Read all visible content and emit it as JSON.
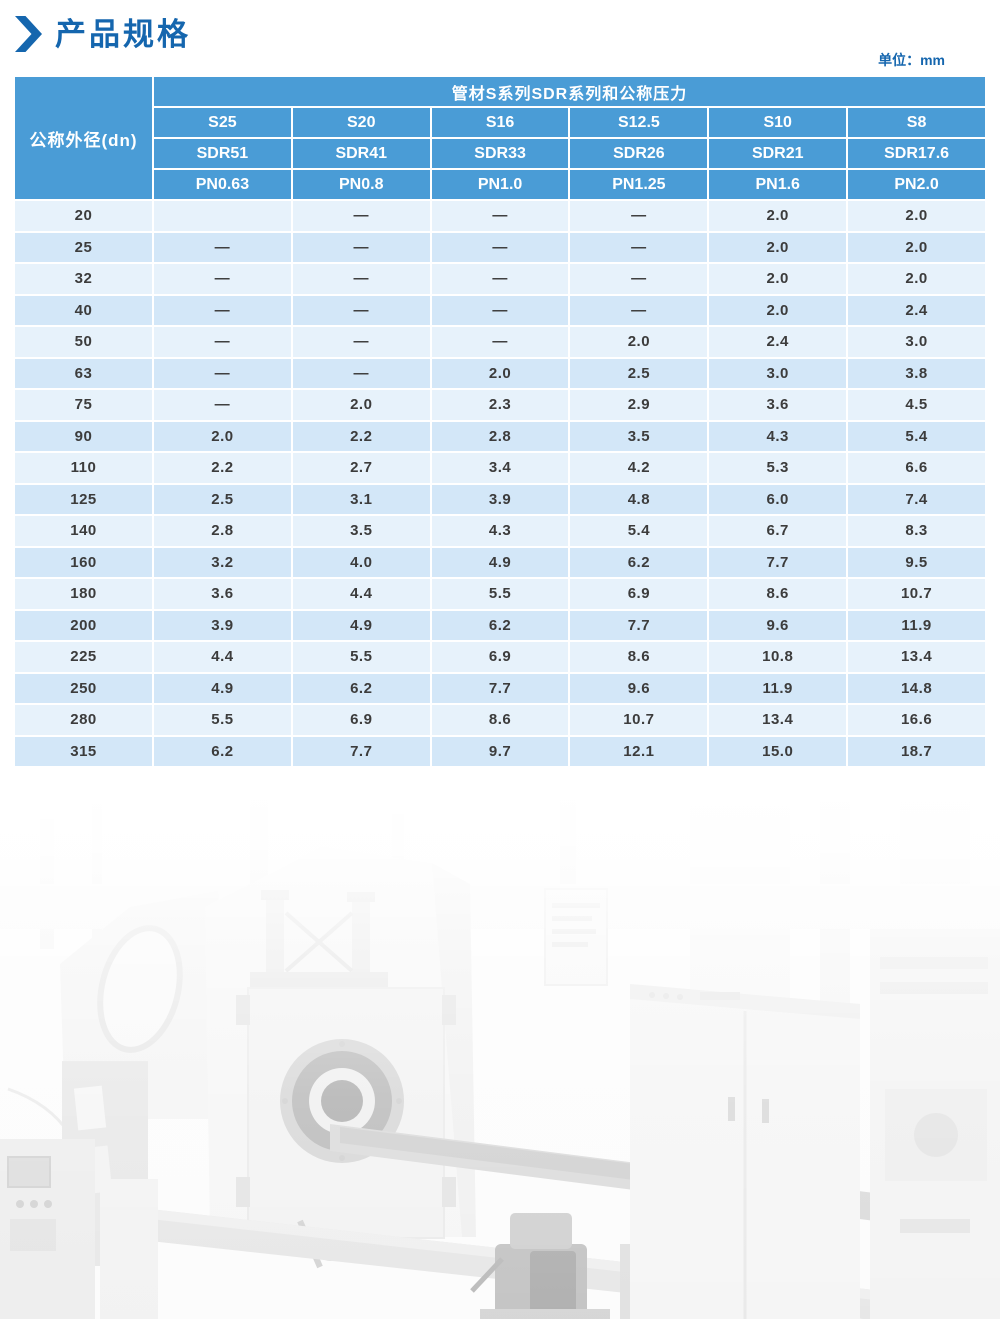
{
  "page": {
    "title": "产品规格",
    "unit_label": "单位：mm"
  },
  "colors": {
    "accent_blue": "#1566AE",
    "header_blue": "#4A9CD6",
    "row_light": "#E7F2FB",
    "row_dark": "#D3E7F8"
  },
  "table": {
    "group_header": "管材S系列SDR系列和公称压力",
    "row_header": "公称外径(dn)",
    "s_labels": [
      "S25",
      "S20",
      "S16",
      "S12.5",
      "S10",
      "S8"
    ],
    "sdr_labels": [
      "SDR51",
      "SDR41",
      "SDR33",
      "SDR26",
      "SDR21",
      "SDR17.6"
    ],
    "pn_labels": [
      "PN0.63",
      "PN0.8",
      "PN1.0",
      "PN1.25",
      "PN1.6",
      "PN2.0"
    ],
    "rows": [
      {
        "dn": "20",
        "values": [
          "",
          "—",
          "—",
          "—",
          "2.0",
          "2.0"
        ]
      },
      {
        "dn": "25",
        "values": [
          "—",
          "—",
          "—",
          "—",
          "2.0",
          "2.0"
        ]
      },
      {
        "dn": "32",
        "values": [
          "—",
          "—",
          "—",
          "—",
          "2.0",
          "2.0"
        ]
      },
      {
        "dn": "40",
        "values": [
          "—",
          "—",
          "—",
          "—",
          "2.0",
          "2.4"
        ]
      },
      {
        "dn": "50",
        "values": [
          "—",
          "—",
          "—",
          "2.0",
          "2.4",
          "3.0"
        ]
      },
      {
        "dn": "63",
        "values": [
          "—",
          "—",
          "2.0",
          "2.5",
          "3.0",
          "3.8"
        ]
      },
      {
        "dn": "75",
        "values": [
          "—",
          "2.0",
          "2.3",
          "2.9",
          "3.6",
          "4.5"
        ]
      },
      {
        "dn": "90",
        "values": [
          "2.0",
          "2.2",
          "2.8",
          "3.5",
          "4.3",
          "5.4"
        ]
      },
      {
        "dn": "110",
        "values": [
          "2.2",
          "2.7",
          "3.4",
          "4.2",
          "5.3",
          "6.6"
        ]
      },
      {
        "dn": "125",
        "values": [
          "2.5",
          "3.1",
          "3.9",
          "4.8",
          "6.0",
          "7.4"
        ]
      },
      {
        "dn": "140",
        "values": [
          "2.8",
          "3.5",
          "4.3",
          "5.4",
          "6.7",
          "8.3"
        ]
      },
      {
        "dn": "160",
        "values": [
          "3.2",
          "4.0",
          "4.9",
          "6.2",
          "7.7",
          "9.5"
        ]
      },
      {
        "dn": "180",
        "values": [
          "3.6",
          "4.4",
          "5.5",
          "6.9",
          "8.6",
          "10.7"
        ]
      },
      {
        "dn": "200",
        "values": [
          "3.9",
          "4.9",
          "6.2",
          "7.7",
          "9.6",
          "11.9"
        ]
      },
      {
        "dn": "225",
        "values": [
          "4.4",
          "5.5",
          "6.9",
          "8.6",
          "10.8",
          "13.4"
        ]
      },
      {
        "dn": "250",
        "values": [
          "4.9",
          "6.2",
          "7.7",
          "9.6",
          "11.9",
          "14.8"
        ]
      },
      {
        "dn": "280",
        "values": [
          "5.5",
          "6.9",
          "8.6",
          "10.7",
          "13.4",
          "16.6"
        ]
      },
      {
        "dn": "315",
        "values": [
          "6.2",
          "7.7",
          "9.7",
          "12.1",
          "15.0",
          "18.7"
        ]
      }
    ]
  }
}
